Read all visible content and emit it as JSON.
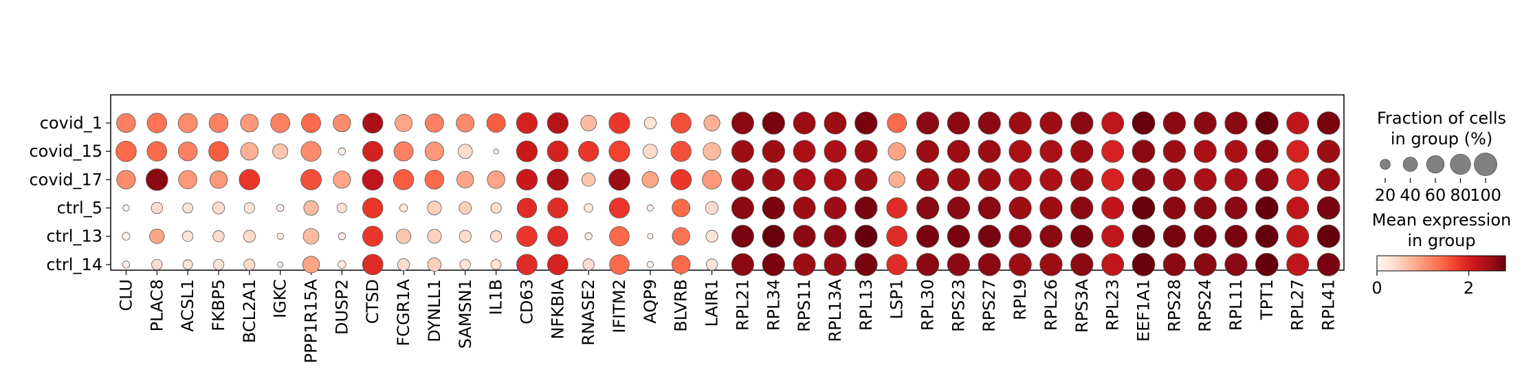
{
  "chart_data": {
    "type": "dotplot",
    "genes": [
      "CLU",
      "PLAC8",
      "ACSL1",
      "FKBP5",
      "BCL2A1",
      "IGKC",
      "PPP1R15A",
      "DUSP2",
      "CTSD",
      "FCGR1A",
      "DYNLL1",
      "SAMSN1",
      "IL1B",
      "CD63",
      "NFKBIA",
      "RNASE2",
      "IFITM2",
      "AQP9",
      "BLVRB",
      "LAIR1",
      "RPL21",
      "RPL34",
      "RPS11",
      "RPL13A",
      "RPL13",
      "LSP1",
      "RPL30",
      "RPS23",
      "RPS27",
      "RPL9",
      "RPL26",
      "RPS3A",
      "RPL23",
      "EEF1A1",
      "RPS28",
      "RPS24",
      "RPL11",
      "TPT1",
      "RPL27",
      "RPL41"
    ],
    "groups": [
      "covid_1",
      "covid_15",
      "covid_17",
      "ctrl_5",
      "ctrl_13",
      "ctrl_14"
    ],
    "fraction_pct": [
      [
        70,
        75,
        72,
        70,
        62,
        72,
        72,
        60,
        80,
        58,
        66,
        63,
        68,
        85,
        85,
        48,
        85,
        28,
        80,
        50,
        95,
        97,
        95,
        95,
        97,
        72,
        97,
        97,
        97,
        97,
        97,
        97,
        95,
        100,
        97,
        97,
        97,
        100,
        95,
        100
      ],
      [
        82,
        75,
        70,
        76,
        60,
        45,
        78,
        10,
        80,
        72,
        68,
        40,
        5,
        85,
        85,
        80,
        85,
        40,
        80,
        60,
        95,
        97,
        95,
        95,
        97,
        60,
        97,
        97,
        97,
        97,
        97,
        97,
        95,
        100,
        97,
        97,
        97,
        100,
        95,
        100
      ],
      [
        68,
        92,
        65,
        60,
        82,
        0,
        82,
        58,
        85,
        80,
        70,
        55,
        60,
        85,
        88,
        35,
        88,
        52,
        82,
        70,
        95,
        97,
        95,
        95,
        97,
        50,
        97,
        97,
        97,
        97,
        97,
        97,
        95,
        100,
        97,
        97,
        97,
        100,
        95,
        100
      ],
      [
        8,
        25,
        20,
        28,
        22,
        10,
        42,
        18,
        80,
        12,
        38,
        30,
        22,
        75,
        80,
        15,
        80,
        8,
        62,
        32,
        95,
        97,
        95,
        95,
        97,
        82,
        97,
        97,
        97,
        97,
        97,
        97,
        95,
        100,
        97,
        97,
        97,
        100,
        95,
        100
      ],
      [
        12,
        42,
        22,
        25,
        28,
        8,
        48,
        10,
        80,
        42,
        38,
        28,
        25,
        82,
        80,
        10,
        75,
        6,
        60,
        28,
        95,
        97,
        95,
        95,
        97,
        82,
        97,
        97,
        97,
        97,
        97,
        97,
        95,
        100,
        97,
        97,
        97,
        100,
        95,
        100
      ],
      [
        10,
        22,
        18,
        22,
        24,
        6,
        55,
        12,
        82,
        28,
        35,
        22,
        20,
        82,
        82,
        25,
        75,
        8,
        65,
        25,
        95,
        97,
        95,
        95,
        97,
        82,
        97,
        97,
        97,
        97,
        97,
        97,
        95,
        100,
        97,
        97,
        97,
        100,
        95,
        100
      ]
    ],
    "mean_expression": [
      [
        1.2,
        1.3,
        1.1,
        1.2,
        1.0,
        1.2,
        1.4,
        1.1,
        2.4,
        0.9,
        1.2,
        1.1,
        1.5,
        2.0,
        2.3,
        0.7,
        1.8,
        0.3,
        1.6,
        0.8,
        2.6,
        2.7,
        2.5,
        2.5,
        2.7,
        1.4,
        2.6,
        2.6,
        2.6,
        2.5,
        2.5,
        2.6,
        2.2,
        2.9,
        2.6,
        2.6,
        2.6,
        2.8,
        2.2,
        2.7
      ],
      [
        1.4,
        1.4,
        1.2,
        1.5,
        0.8,
        0.6,
        1.1,
        0.1,
        2.0,
        1.2,
        1.0,
        0.4,
        0.1,
        2.1,
        2.0,
        1.8,
        1.7,
        0.4,
        1.6,
        0.7,
        2.5,
        2.5,
        2.4,
        2.4,
        2.5,
        0.9,
        2.5,
        2.5,
        2.5,
        2.4,
        2.4,
        2.5,
        2.0,
        2.6,
        2.5,
        2.4,
        2.4,
        2.6,
        2.0,
        2.5
      ],
      [
        1.1,
        2.6,
        1.0,
        1.0,
        1.8,
        0.0,
        1.6,
        0.9,
        2.2,
        1.5,
        1.4,
        0.9,
        0.9,
        2.1,
        2.4,
        0.6,
        2.5,
        0.9,
        1.8,
        1.0,
        2.5,
        2.5,
        2.4,
        2.4,
        2.5,
        0.8,
        2.5,
        2.5,
        2.5,
        2.4,
        2.4,
        2.5,
        2.0,
        2.6,
        2.5,
        2.4,
        2.4,
        2.6,
        2.0,
        2.5
      ],
      [
        0.1,
        0.4,
        0.3,
        0.4,
        0.3,
        0.1,
        0.7,
        0.3,
        1.8,
        0.2,
        0.5,
        0.5,
        0.4,
        1.9,
        1.9,
        0.2,
        1.8,
        0.1,
        1.4,
        0.4,
        2.6,
        2.7,
        2.5,
        2.5,
        2.7,
        1.9,
        2.6,
        2.6,
        2.6,
        2.5,
        2.5,
        2.6,
        2.2,
        2.9,
        2.6,
        2.6,
        2.6,
        2.8,
        2.2,
        2.7
      ],
      [
        0.1,
        0.9,
        0.3,
        0.4,
        0.4,
        0.1,
        0.7,
        0.2,
        1.8,
        0.6,
        0.5,
        0.4,
        0.4,
        1.8,
        1.9,
        0.2,
        1.4,
        0.1,
        1.3,
        0.3,
        2.7,
        2.8,
        2.6,
        2.6,
        2.8,
        1.9,
        2.7,
        2.7,
        2.7,
        2.6,
        2.6,
        2.7,
        2.2,
        2.9,
        2.7,
        2.7,
        2.7,
        2.8,
        2.2,
        2.8
      ],
      [
        0.1,
        0.4,
        0.3,
        0.3,
        0.4,
        0.1,
        0.9,
        0.2,
        1.9,
        0.4,
        0.5,
        0.3,
        0.3,
        1.9,
        2.0,
        0.4,
        1.4,
        0.1,
        1.4,
        0.3,
        2.6,
        2.7,
        2.5,
        2.5,
        2.7,
        1.9,
        2.6,
        2.6,
        2.6,
        2.5,
        2.5,
        2.6,
        2.2,
        2.9,
        2.6,
        2.6,
        2.6,
        2.8,
        2.2,
        2.7
      ]
    ],
    "size_legend": {
      "title_line1": "Fraction of cells",
      "title_line2": "in group (%)",
      "values": [
        20,
        40,
        60,
        80,
        100
      ],
      "labels": [
        "20",
        "40",
        "60",
        "80",
        "100"
      ]
    },
    "color_legend": {
      "title_line1": "Mean expression",
      "title_line2": "in group",
      "min": 0,
      "max": 2.8,
      "ticks": [
        0,
        2
      ],
      "tick_labels": [
        "0",
        "2"
      ],
      "colormap": "Reds"
    }
  }
}
